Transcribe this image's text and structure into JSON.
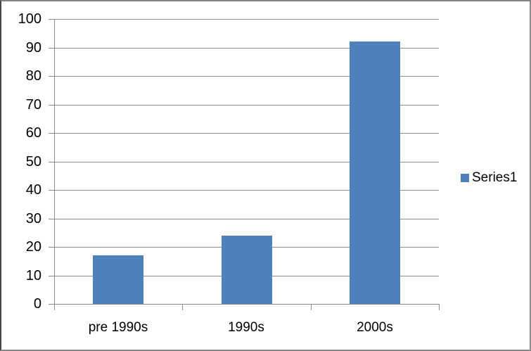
{
  "chart_data": {
    "type": "bar",
    "title": "",
    "xlabel": "",
    "ylabel": "",
    "categories": [
      "pre 1990s",
      "1990s",
      "2000s"
    ],
    "series": [
      {
        "name": "Series1",
        "color": "#4F81BD",
        "values": [
          17,
          24,
          92
        ]
      }
    ],
    "ylim": [
      0,
      100
    ],
    "ytick_step": 10,
    "yticks": [
      0,
      10,
      20,
      30,
      40,
      50,
      60,
      70,
      80,
      90,
      100
    ],
    "grid": true,
    "legend_position": "right",
    "gridline_color": "#8C8C8C",
    "axis_color": "#8A8A8A",
    "text_color": "#000000",
    "plot_background": "#FFFFFF"
  }
}
